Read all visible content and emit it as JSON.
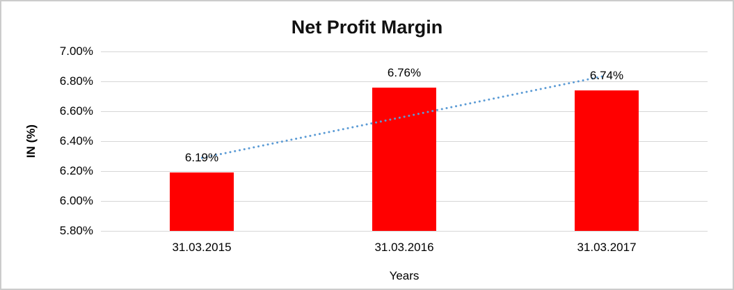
{
  "chart_data": {
    "type": "bar",
    "title": "Net Profit Margin",
    "xlabel": "Years",
    "ylabel": "IN (%)",
    "categories": [
      "31.03.2015",
      "31.03.2016",
      "31.03.2017"
    ],
    "values": [
      6.19,
      6.76,
      6.74
    ],
    "data_labels": [
      "6.19%",
      "6.76%",
      "6.74%"
    ],
    "ylim": [
      5.8,
      7.0
    ],
    "ytick_step": 0.2,
    "ytick_labels": [
      "5.80%",
      "6.00%",
      "6.20%",
      "6.40%",
      "6.60%",
      "6.80%",
      "7.00%"
    ],
    "grid": true,
    "legend_position": "none",
    "bar_color": "#FF0000",
    "gridline_color": "#D6D6D6",
    "trendline": {
      "type": "linear",
      "line_style": "dotted",
      "color": "#5B9BD5"
    }
  }
}
